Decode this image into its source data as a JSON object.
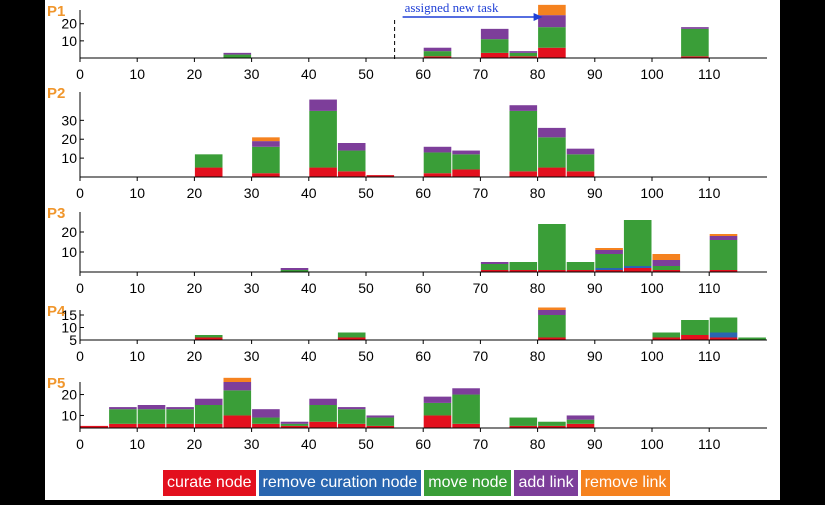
{
  "colors": {
    "curate": "#e3101e",
    "remove_curation": "#2a66b0",
    "move": "#3a9e38",
    "add": "#7d3e9a",
    "remove_link": "#f5821f"
  },
  "legend": [
    {
      "key": "curate",
      "label": "curate node"
    },
    {
      "key": "remove_curation",
      "label": "remove curation node"
    },
    {
      "key": "move",
      "label": "move node"
    },
    {
      "key": "add",
      "label": "add link"
    },
    {
      "key": "remove_link",
      "label": "remove link"
    }
  ],
  "annotation": {
    "text": "assigned new task",
    "x": 55
  },
  "chart_data": [
    {
      "type": "bar",
      "stacked": true,
      "label": "P1",
      "xticks": [
        0,
        10,
        20,
        30,
        40,
        50,
        60,
        70,
        80,
        90,
        100,
        110
      ],
      "yticks": [
        10,
        20
      ],
      "ylim": [
        0,
        28
      ],
      "bin_width": 5,
      "bars": [
        {
          "x": 25,
          "curate": 0,
          "remove_curation": 0,
          "move": 2,
          "add": 1,
          "remove_link": 0
        },
        {
          "x": 60,
          "curate": 1,
          "remove_curation": 0,
          "move": 3,
          "add": 2,
          "remove_link": 0
        },
        {
          "x": 70,
          "curate": 3,
          "remove_curation": 0,
          "move": 8,
          "add": 6,
          "remove_link": 0
        },
        {
          "x": 75,
          "curate": 1,
          "remove_curation": 0,
          "move": 2,
          "add": 1,
          "remove_link": 0
        },
        {
          "x": 80,
          "curate": 6,
          "remove_curation": 0,
          "move": 12,
          "add": 7,
          "remove_link": 6
        },
        {
          "x": 105,
          "curate": 1,
          "remove_curation": 0,
          "move": 16,
          "add": 1,
          "remove_link": 0
        }
      ]
    },
    {
      "type": "bar",
      "stacked": true,
      "label": "P2",
      "xticks": [
        0,
        10,
        20,
        30,
        40,
        50,
        60,
        70,
        80,
        90,
        100,
        110
      ],
      "yticks": [
        10,
        20,
        30
      ],
      "ylim": [
        0,
        45
      ],
      "bin_width": 5,
      "bars": [
        {
          "x": 20,
          "curate": 5,
          "remove_curation": 0,
          "move": 7,
          "add": 0,
          "remove_link": 0
        },
        {
          "x": 30,
          "curate": 2,
          "remove_curation": 0,
          "move": 14,
          "add": 3,
          "remove_link": 2
        },
        {
          "x": 40,
          "curate": 5,
          "remove_curation": 0,
          "move": 30,
          "add": 6,
          "remove_link": 0
        },
        {
          "x": 45,
          "curate": 3,
          "remove_curation": 0,
          "move": 11,
          "add": 4,
          "remove_link": 0
        },
        {
          "x": 50,
          "curate": 1,
          "remove_curation": 0,
          "move": 0,
          "add": 0,
          "remove_link": 0
        },
        {
          "x": 60,
          "curate": 2,
          "remove_curation": 0,
          "move": 11,
          "add": 3,
          "remove_link": 0
        },
        {
          "x": 65,
          "curate": 4,
          "remove_curation": 0,
          "move": 8,
          "add": 2,
          "remove_link": 0
        },
        {
          "x": 75,
          "curate": 3,
          "remove_curation": 0,
          "move": 32,
          "add": 3,
          "remove_link": 0
        },
        {
          "x": 80,
          "curate": 5,
          "remove_curation": 0,
          "move": 16,
          "add": 5,
          "remove_link": 0
        },
        {
          "x": 85,
          "curate": 3,
          "remove_curation": 0,
          "move": 9,
          "add": 3,
          "remove_link": 0
        }
      ]
    },
    {
      "type": "bar",
      "stacked": true,
      "label": "P3",
      "xticks": [
        0,
        10,
        20,
        30,
        40,
        50,
        60,
        70,
        80,
        90,
        100,
        110
      ],
      "yticks": [
        10,
        20
      ],
      "ylim": [
        0,
        30
      ],
      "bin_width": 5,
      "bars": [
        {
          "x": 35,
          "curate": 0,
          "remove_curation": 0,
          "move": 1,
          "add": 1,
          "remove_link": 0
        },
        {
          "x": 70,
          "curate": 1,
          "remove_curation": 0,
          "move": 3,
          "add": 1,
          "remove_link": 0
        },
        {
          "x": 75,
          "curate": 1,
          "remove_curation": 0,
          "move": 4,
          "add": 0,
          "remove_link": 0
        },
        {
          "x": 80,
          "curate": 1,
          "remove_curation": 0,
          "move": 23,
          "add": 0,
          "remove_link": 0
        },
        {
          "x": 85,
          "curate": 1,
          "remove_curation": 0,
          "move": 4,
          "add": 0,
          "remove_link": 0
        },
        {
          "x": 90,
          "curate": 1,
          "remove_curation": 1,
          "move": 7,
          "add": 2,
          "remove_link": 1
        },
        {
          "x": 95,
          "curate": 2,
          "remove_curation": 1,
          "move": 23,
          "add": 0,
          "remove_link": 0
        },
        {
          "x": 100,
          "curate": 1,
          "remove_curation": 0,
          "move": 2,
          "add": 3,
          "remove_link": 3
        },
        {
          "x": 110,
          "curate": 1,
          "remove_curation": 0,
          "move": 15,
          "add": 2,
          "remove_link": 1
        }
      ]
    },
    {
      "type": "bar",
      "stacked": true,
      "label": "P4",
      "xticks": [
        0,
        10,
        20,
        30,
        40,
        50,
        60,
        70,
        80,
        90,
        100,
        110
      ],
      "yticks": [
        5,
        10,
        15
      ],
      "ylim": [
        5,
        17
      ],
      "bin_width": 5,
      "bars": [
        {
          "x": 20,
          "curate": 1,
          "remove_curation": 0,
          "move": 1,
          "add": 0,
          "remove_link": 0
        },
        {
          "x": 45,
          "curate": 1,
          "remove_curation": 0,
          "move": 2,
          "add": 0,
          "remove_link": 0
        },
        {
          "x": 80,
          "curate": 1,
          "remove_curation": 0,
          "move": 9,
          "add": 2,
          "remove_link": 1
        },
        {
          "x": 100,
          "curate": 1,
          "remove_curation": 0,
          "move": 2,
          "add": 0,
          "remove_link": 0
        },
        {
          "x": 105,
          "curate": 2,
          "remove_curation": 0,
          "move": 6,
          "add": 0,
          "remove_link": 0
        },
        {
          "x": 110,
          "curate": 1,
          "remove_curation": 2,
          "move": 6,
          "add": 0,
          "remove_link": 0
        },
        {
          "x": 115,
          "curate": 0,
          "remove_curation": 0,
          "move": 1,
          "add": 0,
          "remove_link": 0
        }
      ]
    },
    {
      "type": "bar",
      "stacked": true,
      "label": "P5",
      "xticks": [
        0,
        10,
        20,
        30,
        40,
        50,
        60,
        70,
        80,
        90,
        100,
        110
      ],
      "yticks": [
        10,
        20
      ],
      "ylim": [
        4,
        26
      ],
      "bin_width": 5,
      "bars": [
        {
          "x": 0,
          "curate": 1,
          "remove_curation": 0,
          "move": 0,
          "add": 0,
          "remove_link": 0
        },
        {
          "x": 5,
          "curate": 2,
          "remove_curation": 0,
          "move": 7,
          "add": 1,
          "remove_link": 0
        },
        {
          "x": 10,
          "curate": 2,
          "remove_curation": 0,
          "move": 7,
          "add": 2,
          "remove_link": 0
        },
        {
          "x": 15,
          "curate": 2,
          "remove_curation": 0,
          "move": 7,
          "add": 1,
          "remove_link": 0
        },
        {
          "x": 20,
          "curate": 2,
          "remove_curation": 0,
          "move": 9,
          "add": 3,
          "remove_link": 0
        },
        {
          "x": 25,
          "curate": 6,
          "remove_curation": 0,
          "move": 12,
          "add": 4,
          "remove_link": 2
        },
        {
          "x": 30,
          "curate": 2,
          "remove_curation": 0,
          "move": 3,
          "add": 4,
          "remove_link": 0
        },
        {
          "x": 35,
          "curate": 1,
          "remove_curation": 0,
          "move": 1,
          "add": 1,
          "remove_link": 0
        },
        {
          "x": 40,
          "curate": 3,
          "remove_curation": 0,
          "move": 8,
          "add": 3,
          "remove_link": 0
        },
        {
          "x": 45,
          "curate": 2,
          "remove_curation": 0,
          "move": 7,
          "add": 1,
          "remove_link": 0
        },
        {
          "x": 50,
          "curate": 1,
          "remove_curation": 0,
          "move": 4,
          "add": 1,
          "remove_link": 0
        },
        {
          "x": 60,
          "curate": 6,
          "remove_curation": 0,
          "move": 6,
          "add": 3,
          "remove_link": 0
        },
        {
          "x": 65,
          "curate": 2,
          "remove_curation": 0,
          "move": 14,
          "add": 3,
          "remove_link": 0
        },
        {
          "x": 75,
          "curate": 1,
          "remove_curation": 0,
          "move": 4,
          "add": 0,
          "remove_link": 0
        },
        {
          "x": 80,
          "curate": 1,
          "remove_curation": 0,
          "move": 2,
          "add": 0,
          "remove_link": 0
        },
        {
          "x": 85,
          "curate": 2,
          "remove_curation": 0,
          "move": 2,
          "add": 2,
          "remove_link": 0
        }
      ]
    }
  ]
}
